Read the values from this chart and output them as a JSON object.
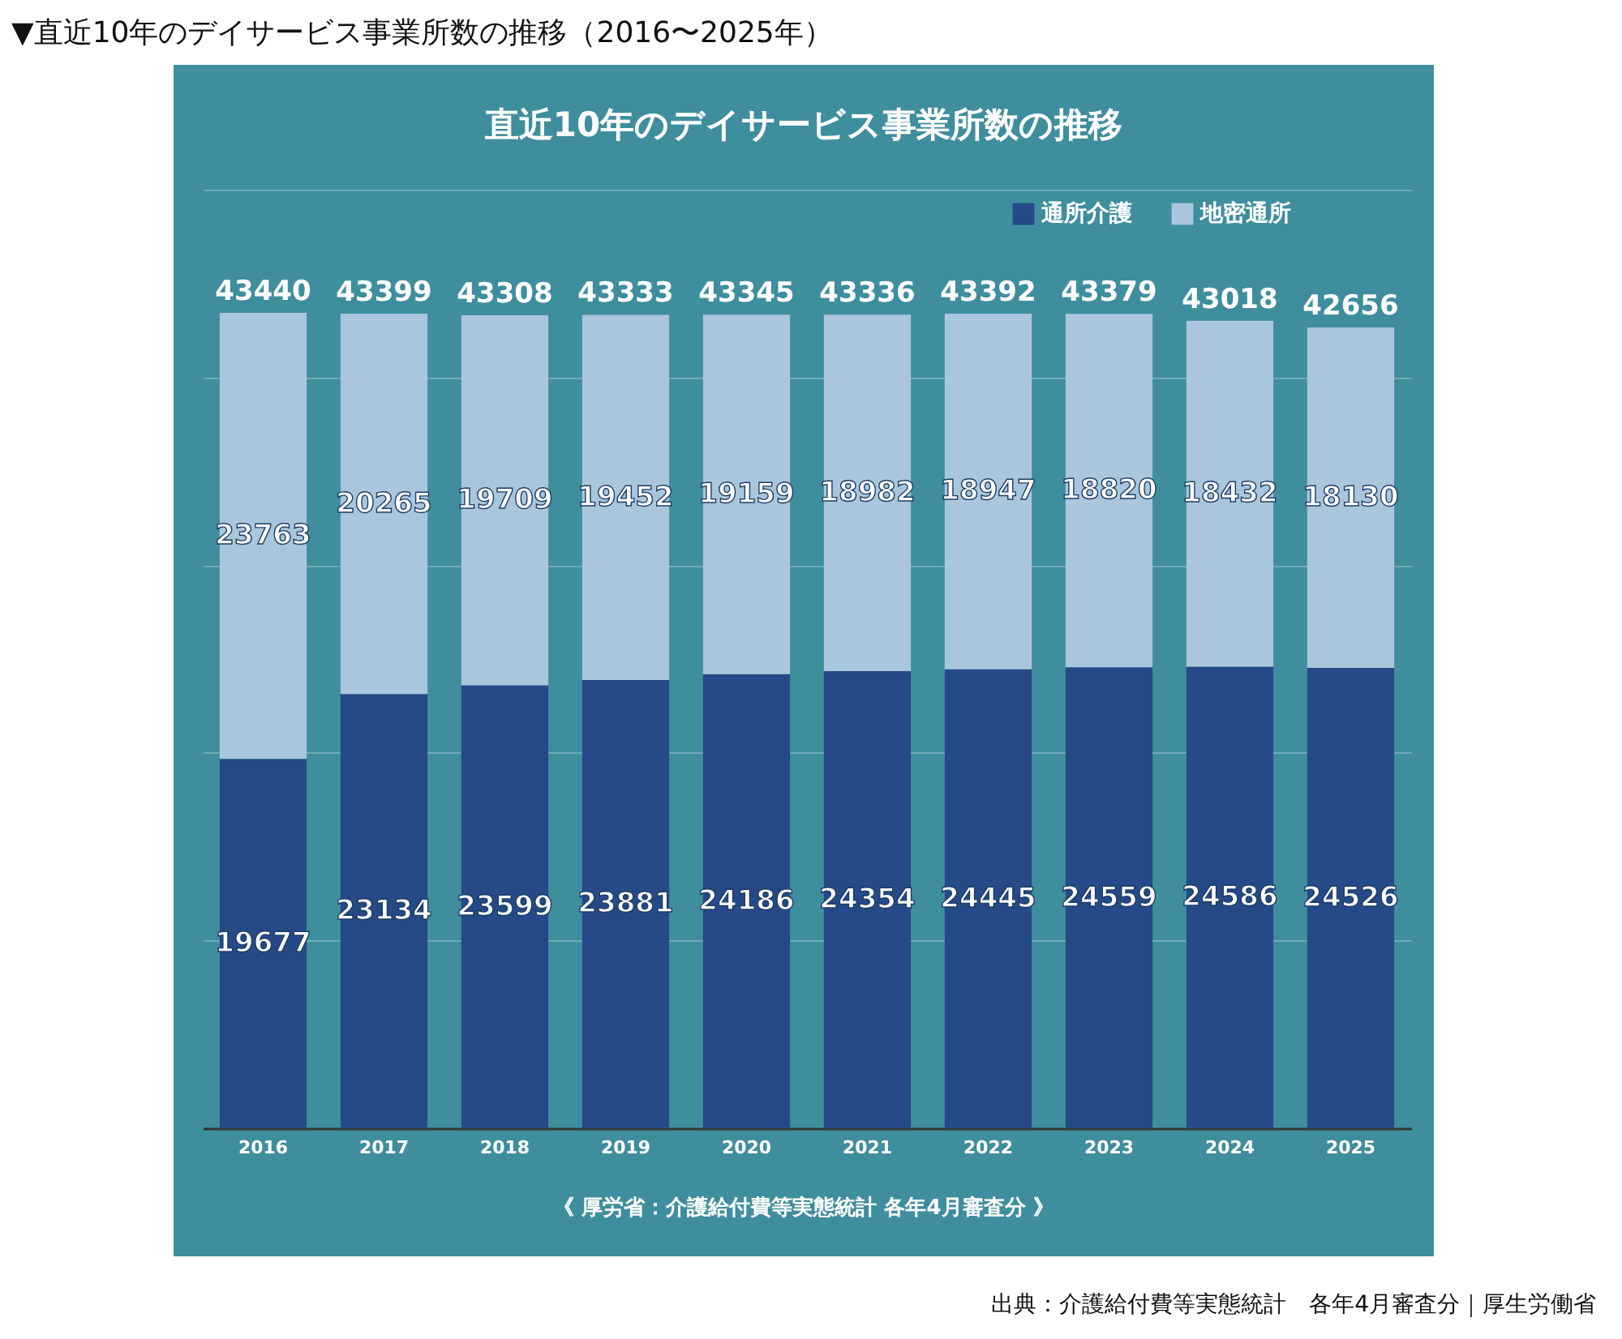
{
  "chart_data": {
    "type": "bar",
    "title": "▼直近10年のデイサービス事業所数の推移（2016〜2025年）",
    "subtitle": "直近10年のデイサービス事業所数の推移",
    "categories": [
      "2016",
      "2017",
      "2018",
      "2019",
      "2020",
      "2021",
      "2022",
      "2023",
      "2024",
      "2025"
    ],
    "series": [
      {
        "name": "通所介護",
        "color": "#254a87",
        "values": [
          19677,
          23134,
          23599,
          23881,
          24186,
          24354,
          24445,
          24559,
          24586,
          24526
        ]
      },
      {
        "name": "地密通所",
        "color": "#a9c6dc",
        "values": [
          23763,
          20265,
          19709,
          19452,
          19159,
          18982,
          18947,
          18820,
          18432,
          18130
        ]
      }
    ],
    "stacked": true,
    "data_labels": true,
    "totals": [
      "43440",
      "43399",
      "43308",
      "43333",
      "43345",
      "43336",
      "43392",
      "43379",
      "43018",
      "42656"
    ],
    "ylim": [
      0,
      50000
    ],
    "yticks": [
      {
        "value": 0,
        "label": null
      },
      {
        "value": 10000,
        "label": null
      },
      {
        "value": 20000,
        "label": null
      },
      {
        "value": 30000,
        "label": null
      },
      {
        "value": 40000,
        "label": null
      },
      {
        "value": 50000,
        "label": null
      }
    ],
    "tick_labels": "x",
    "grid": "y",
    "legend": "top right",
    "annotations": [
      "《 厚労省：介護給付費等実態統計 各年4月審査分 》",
      "出典：介護給付費等実態統計　各年4月審査分｜厚生労働省"
    ]
  }
}
